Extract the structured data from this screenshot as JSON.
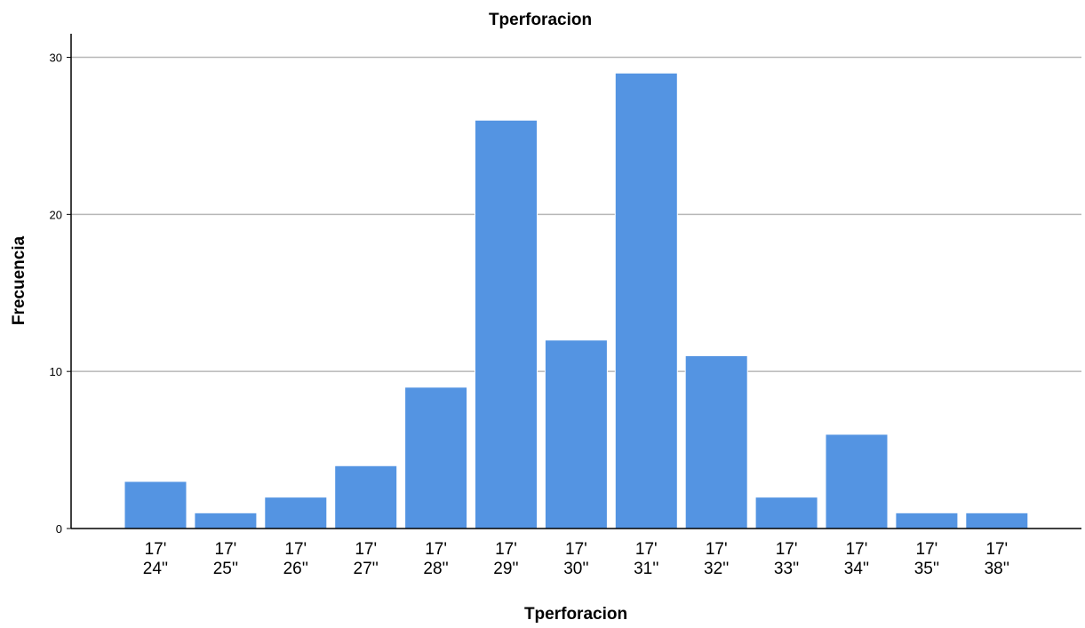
{
  "chart_data": {
    "type": "bar",
    "title": "Tperforacion",
    "xlabel": "Tperforacion",
    "ylabel": "Frecuencia",
    "categories": [
      [
        "17'",
        "24''"
      ],
      [
        "17'",
        "25''"
      ],
      [
        "17'",
        "26''"
      ],
      [
        "17'",
        "27''"
      ],
      [
        "17'",
        "28''"
      ],
      [
        "17'",
        "29''"
      ],
      [
        "17'",
        "30''"
      ],
      [
        "17'",
        "31''"
      ],
      [
        "17'",
        "32''"
      ],
      [
        "17'",
        "33''"
      ],
      [
        "17'",
        "34''"
      ],
      [
        "17'",
        "35''"
      ],
      [
        "17'",
        "38''"
      ]
    ],
    "values": [
      3,
      1,
      2,
      4,
      9,
      26,
      12,
      29,
      11,
      2,
      6,
      1,
      1
    ],
    "ylim": [
      0,
      31.5
    ],
    "yticks": [
      0,
      10,
      20,
      30
    ],
    "grid": true,
    "bar_color": "#5494e2",
    "gridline_color": "#b7b7b7"
  }
}
